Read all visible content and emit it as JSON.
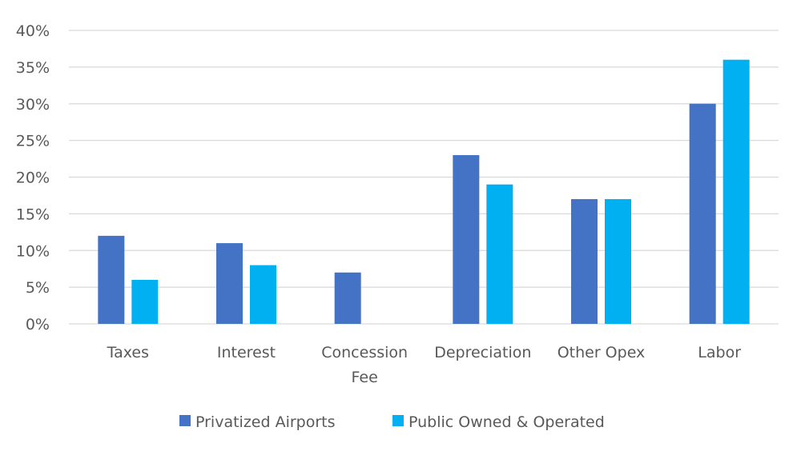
{
  "chart_data": {
    "type": "bar",
    "title": "",
    "xlabel": "",
    "ylabel": "",
    "categories": [
      [
        "Taxes"
      ],
      [
        "Interest"
      ],
      [
        "Concession",
        "Fee"
      ],
      [
        "Depreciation"
      ],
      [
        "Other Opex"
      ],
      [
        "Labor"
      ]
    ],
    "series": [
      {
        "name": "Privatized Airports",
        "color": "#4472c4",
        "values": [
          12,
          11,
          7,
          23,
          17,
          30
        ]
      },
      {
        "name": "Public Owned & Operated",
        "color": "#00b0f0",
        "values": [
          6,
          8,
          0,
          19,
          17,
          36
        ]
      }
    ],
    "ylim": [
      0,
      40
    ],
    "yticks": [
      0,
      5,
      10,
      15,
      20,
      25,
      30,
      35,
      40
    ],
    "ytick_labels": [
      "0%",
      "5%",
      "10%",
      "15%",
      "20%",
      "25%",
      "30%",
      "35%",
      "40%"
    ],
    "grid": true,
    "legend_position": "bottom"
  }
}
